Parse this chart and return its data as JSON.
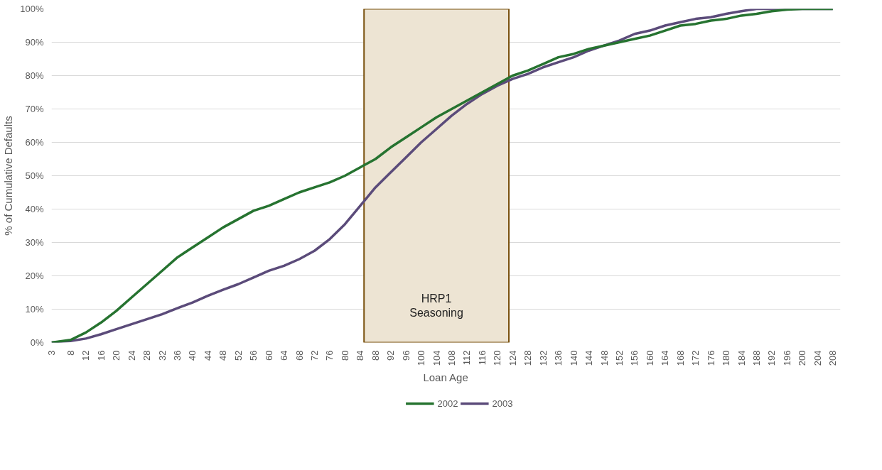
{
  "chart_data": {
    "type": "line",
    "xlabel": "Loan Age",
    "ylabel": "% of Cumulative Defaults",
    "x": [
      3,
      8,
      12,
      16,
      20,
      24,
      28,
      32,
      36,
      40,
      44,
      48,
      52,
      56,
      60,
      64,
      68,
      72,
      76,
      80,
      84,
      88,
      92,
      96,
      100,
      104,
      108,
      112,
      116,
      120,
      124,
      128,
      132,
      136,
      140,
      144,
      148,
      152,
      156,
      160,
      164,
      168,
      172,
      176,
      180,
      184,
      188,
      192,
      196,
      200,
      204,
      208
    ],
    "series": [
      {
        "name": "2002",
        "color": "#267330",
        "values": [
          0,
          0.8,
          3,
          6,
          9.5,
          13.5,
          17.5,
          21.5,
          25.5,
          28.5,
          31.5,
          34.5,
          37,
          39.5,
          41,
          43,
          45,
          46.5,
          48,
          50,
          52.5,
          55,
          58.5,
          61.5,
          64.5,
          67.5,
          70,
          72.5,
          75,
          77.5,
          80,
          81.5,
          83.5,
          85.5,
          86.5,
          88,
          89,
          90,
          91,
          92,
          93.5,
          95,
          95.5,
          96.5,
          97,
          98,
          98.5,
          99.3,
          99.8,
          100,
          100,
          100
        ]
      },
      {
        "name": "2003",
        "color": "#5b4b7a",
        "values": [
          0,
          0.5,
          1.2,
          2.5,
          4,
          5.5,
          7,
          8.5,
          10.3,
          12,
          14,
          15.8,
          17.5,
          19.5,
          21.5,
          23,
          25,
          27.5,
          31,
          35.5,
          41,
          46.5,
          51,
          55.5,
          60,
          64,
          68,
          71.5,
          74.5,
          77,
          79,
          80.5,
          82.5,
          84,
          85.5,
          87.5,
          89,
          90.5,
          92.5,
          93.5,
          95,
          96,
          97,
          97.5,
          98.5,
          99.3,
          100,
          100,
          100,
          100,
          100,
          100
        ]
      }
    ],
    "xlim": [
      3,
      210
    ],
    "xticks": [
      3,
      8,
      12,
      16,
      20,
      24,
      28,
      32,
      36,
      40,
      44,
      48,
      52,
      56,
      60,
      64,
      68,
      72,
      76,
      80,
      84,
      88,
      92,
      96,
      100,
      104,
      108,
      112,
      116,
      120,
      124,
      128,
      132,
      136,
      140,
      144,
      148,
      152,
      156,
      160,
      164,
      168,
      172,
      176,
      180,
      184,
      188,
      192,
      196,
      200,
      204,
      208
    ],
    "ylim": [
      0,
      100
    ],
    "yticks": [
      {
        "value": 0,
        "label": "0%"
      },
      {
        "value": 10,
        "label": "10%"
      },
      {
        "value": 20,
        "label": "20%"
      },
      {
        "value": 30,
        "label": "30%"
      },
      {
        "value": 40,
        "label": "40%"
      },
      {
        "value": 50,
        "label": "50%"
      },
      {
        "value": 60,
        "label": "60%"
      },
      {
        "value": 70,
        "label": "70%"
      },
      {
        "value": 80,
        "label": "80%"
      },
      {
        "value": 90,
        "label": "90%"
      },
      {
        "value": 100,
        "label": "100%"
      }
    ],
    "bands": [
      {
        "axis": "x",
        "from": 85,
        "to": 123,
        "label": "HRP1\nSeasoning",
        "color": "#ede4d3"
      }
    ],
    "grid": "y",
    "legend": "bottom",
    "line_style": "solid"
  }
}
